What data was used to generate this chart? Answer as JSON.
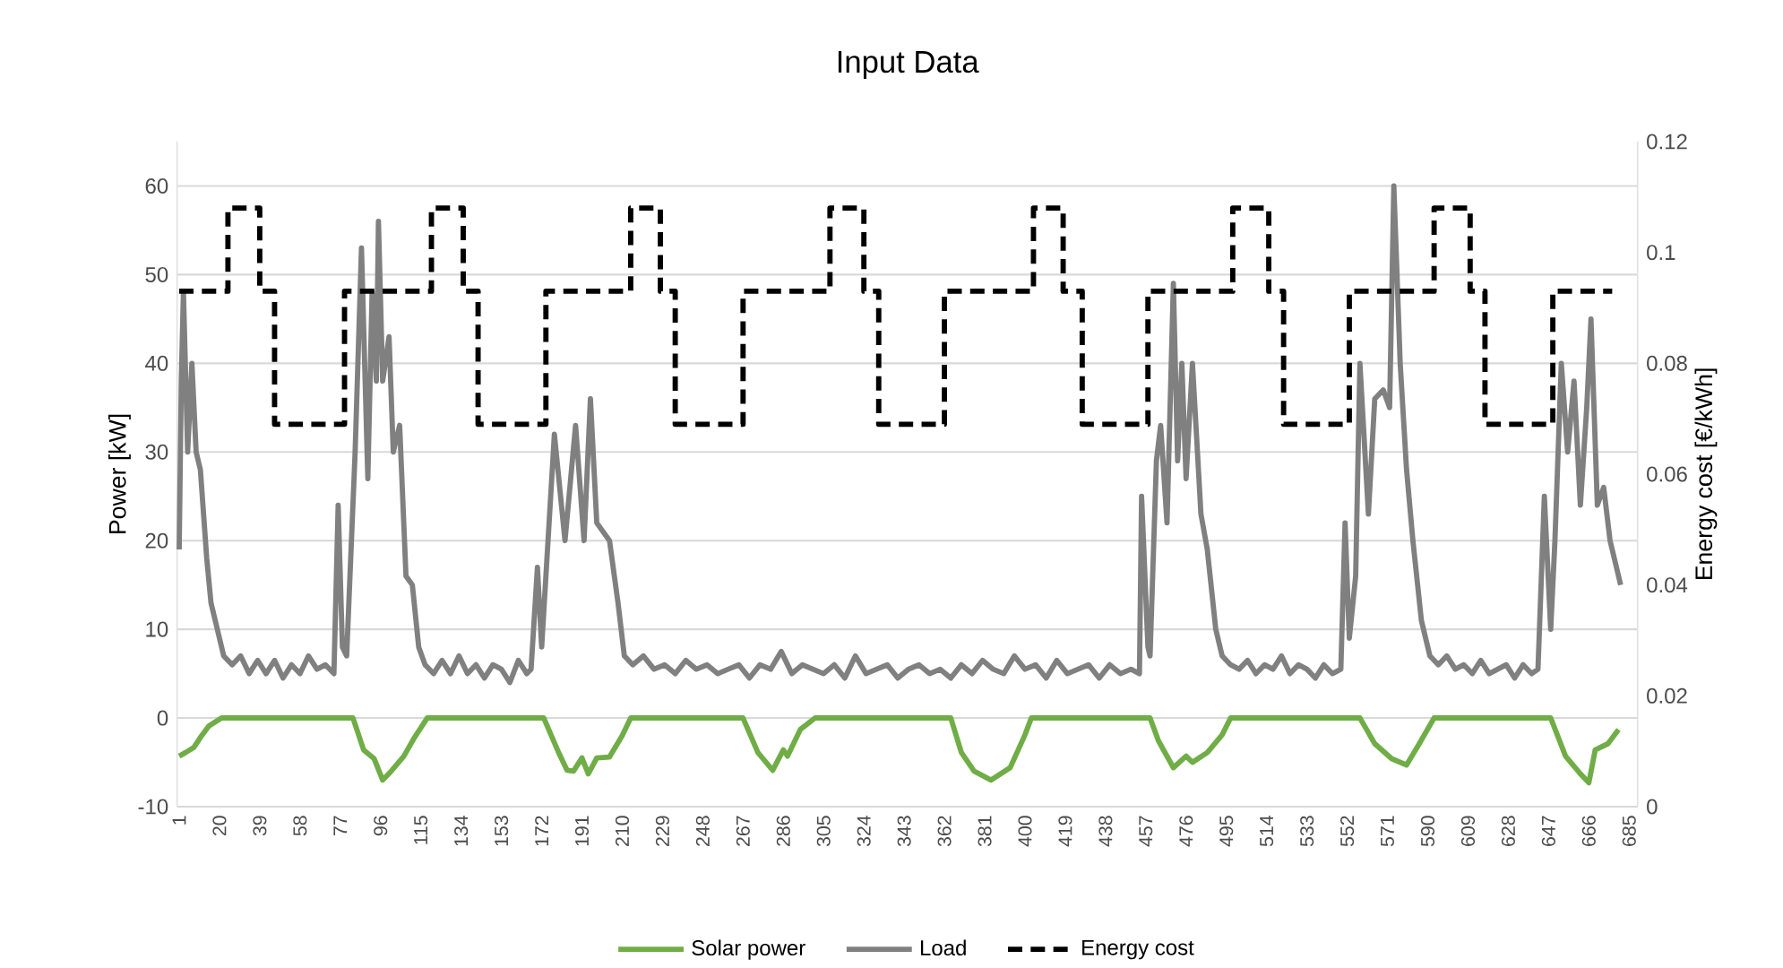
{
  "chart_data": {
    "type": "line",
    "title": "Input Data",
    "ylabel": "Power [kW]",
    "y2label": "Energy cost [€/kWh]",
    "xlim": [
      0,
      689
    ],
    "xticks": [
      1,
      20,
      39,
      58,
      77,
      96,
      115,
      134,
      153,
      172,
      191,
      210,
      229,
      248,
      267,
      286,
      305,
      324,
      343,
      362,
      381,
      400,
      419,
      438,
      457,
      476,
      495,
      514,
      533,
      552,
      571,
      590,
      609,
      628,
      647,
      666,
      685
    ],
    "ylim": [
      -10,
      65
    ],
    "yticks": [
      -10,
      0,
      10,
      20,
      30,
      40,
      50,
      60
    ],
    "y2lim": [
      0,
      0.12
    ],
    "y2ticks": [
      0,
      0.02,
      0.04,
      0.06,
      0.08,
      0.1,
      0.12
    ],
    "grid": "y",
    "legend": "bottom",
    "marker": "none",
    "series": [
      {
        "name": "Solar power",
        "color": "#70ad47",
        "type": "line",
        "line_style": "solid",
        "x": [
          1,
          4,
          8,
          11,
          15,
          21,
          83,
          88,
          93,
          97,
          101,
          107,
          112,
          118,
          173,
          180,
          184,
          187,
          191,
          194,
          198,
          204,
          210,
          214,
          267,
          274,
          281,
          286,
          288,
          294,
          301,
          365,
          370,
          376,
          384,
          393,
          400,
          403,
          459,
          463,
          470,
          476,
          479,
          486,
          493,
          497,
          558,
          565,
          573,
          580,
          586,
          593,
          648,
          655,
          662,
          666,
          669,
          675,
          680
        ],
        "values": [
          -4.3,
          -3.9,
          -3.3,
          -2.2,
          -0.9,
          0,
          0,
          -3.6,
          -4.6,
          -7,
          -6,
          -4.3,
          -2.2,
          0,
          0,
          -3.9,
          -5.9,
          -6,
          -4.5,
          -6.3,
          -4.5,
          -4.4,
          -2,
          0,
          0,
          -3.9,
          -5.9,
          -3.6,
          -4.3,
          -1.3,
          0,
          0,
          -3.9,
          -6,
          -7,
          -5.6,
          -1.9,
          0,
          0,
          -2.6,
          -5.6,
          -4.3,
          -5,
          -3.9,
          -1.9,
          0,
          0,
          -2.9,
          -4.6,
          -5.3,
          -2.9,
          0,
          0,
          -4.3,
          -6.3,
          -7.3,
          -3.6,
          -2.9,
          -1.3
        ]
      },
      {
        "name": "Load",
        "color": "#808080",
        "type": "line",
        "line_style": "solid",
        "x": [
          1,
          2,
          3,
          5,
          7,
          9,
          11,
          14,
          16,
          19,
          22,
          26,
          30,
          34,
          38,
          42,
          46,
          50,
          54,
          58,
          62,
          66,
          70,
          74,
          76,
          78,
          80,
          84,
          87,
          90,
          92,
          94,
          95,
          97,
          100,
          102,
          105,
          108,
          111,
          114,
          117,
          121,
          125,
          129,
          133,
          137,
          141,
          145,
          149,
          153,
          157,
          161,
          165,
          167,
          170,
          172,
          178,
          183,
          188,
          192,
          195,
          198,
          204,
          208,
          211,
          215,
          220,
          225,
          230,
          235,
          240,
          245,
          250,
          255,
          260,
          265,
          270,
          275,
          280,
          285,
          290,
          295,
          300,
          305,
          310,
          315,
          320,
          325,
          330,
          335,
          340,
          345,
          350,
          355,
          360,
          365,
          370,
          375,
          380,
          385,
          390,
          395,
          400,
          405,
          410,
          415,
          420,
          425,
          430,
          435,
          440,
          445,
          450,
          454,
          455,
          458,
          459,
          462,
          464,
          467,
          470,
          472,
          474,
          476,
          479,
          483,
          486,
          490,
          493,
          497,
          501,
          505,
          509,
          513,
          517,
          521,
          525,
          529,
          533,
          537,
          541,
          545,
          549,
          551,
          553,
          556,
          558,
          562,
          565,
          569,
          572,
          574,
          577,
          580,
          583,
          587,
          591,
          595,
          599,
          603,
          607,
          611,
          615,
          619,
          623,
          627,
          631,
          635,
          639,
          642,
          645,
          648,
          650,
          653,
          656,
          659,
          662,
          665,
          667,
          670,
          673,
          676,
          681
        ],
        "values": [
          19,
          38,
          48,
          30,
          40,
          30,
          28,
          18,
          13,
          10,
          7,
          6,
          7,
          5,
          6.5,
          5,
          6.5,
          4.5,
          6,
          5,
          7,
          5.5,
          6,
          5,
          24,
          8,
          7,
          30,
          53,
          27,
          48,
          38,
          56,
          38,
          43,
          30,
          33,
          16,
          15,
          8,
          6,
          5,
          6.5,
          5,
          7,
          5,
          6,
          4.5,
          6,
          5.5,
          4,
          6.5,
          5,
          5.5,
          17,
          8,
          32,
          20,
          33,
          20,
          36,
          22,
          20,
          13,
          7,
          6,
          7,
          5.5,
          6,
          5,
          6.5,
          5.5,
          6,
          5,
          5.5,
          6,
          4.5,
          6,
          5.5,
          7.5,
          5,
          6,
          5.5,
          5,
          6,
          4.5,
          7,
          5,
          5.5,
          6,
          4.5,
          5.5,
          6,
          5,
          5.5,
          4.5,
          6,
          5,
          6.5,
          5.5,
          5,
          7,
          5.5,
          6,
          4.5,
          6.5,
          5,
          5.5,
          6,
          4.5,
          6,
          5,
          5.5,
          5,
          25,
          8,
          7,
          29,
          33,
          22,
          49,
          29,
          40,
          27,
          40,
          23,
          19,
          10,
          7,
          6,
          5.5,
          6.5,
          5,
          6,
          5.5,
          7,
          5,
          6,
          5.5,
          4.5,
          6,
          5,
          5.5,
          22,
          9,
          16,
          40,
          23,
          36,
          37,
          35,
          60,
          40,
          28,
          20,
          11,
          7,
          6,
          7,
          5.5,
          6,
          5,
          6.5,
          5,
          5.5,
          6,
          4.5,
          6,
          5,
          5.5,
          25,
          10,
          20,
          40,
          30,
          38,
          24,
          35,
          45,
          24,
          26,
          20,
          15
        ]
      },
      {
        "name": "Energy cost",
        "color": "#000000",
        "type": "step",
        "line_style": "dashed",
        "axis": "y2",
        "x": [
          1,
          24,
          39,
          46,
          79,
          120,
          135,
          142,
          174,
          214,
          228,
          235,
          267,
          308,
          324,
          331,
          362,
          404,
          418,
          427,
          458,
          498,
          515,
          522,
          553,
          593,
          610,
          617,
          649,
          677
        ],
        "values": [
          0.093,
          0.108,
          0.093,
          0.069,
          0.093,
          0.108,
          0.093,
          0.069,
          0.093,
          0.108,
          0.093,
          0.069,
          0.093,
          0.108,
          0.093,
          0.069,
          0.093,
          0.108,
          0.093,
          0.069,
          0.093,
          0.108,
          0.093,
          0.069,
          0.093,
          0.108,
          0.093,
          0.069,
          0.093,
          0.093
        ]
      }
    ]
  }
}
